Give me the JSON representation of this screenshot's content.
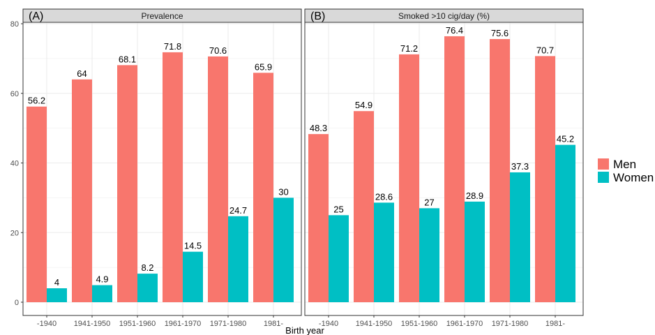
{
  "chart_data": {
    "type": "bar",
    "xlabel": "Birth year",
    "ylabel": "",
    "ylim": [
      0,
      80
    ],
    "yticks": [
      0,
      20,
      40,
      60,
      80
    ],
    "categories": [
      "-1940",
      "1941-1950",
      "1951-1960",
      "1961-1970",
      "1971-1980",
      "1981-"
    ],
    "grid": true,
    "legend": {
      "placement": "right",
      "entries": [
        {
          "name": "Men",
          "color": "#F8766D"
        },
        {
          "name": "Women",
          "color": "#00BFC4"
        }
      ]
    },
    "panels": [
      {
        "tag": "(A)",
        "strip": "Prevalence",
        "series": [
          {
            "name": "Men",
            "values": [
              56.2,
              64,
              68.1,
              71.8,
              70.6,
              65.9
            ],
            "labels": [
              "56.2",
              "64",
              "68.1",
              "71.8",
              "70.6",
              "65.9"
            ]
          },
          {
            "name": "Women",
            "values": [
              4,
              4.9,
              8.2,
              14.5,
              24.7,
              30
            ],
            "labels": [
              "4",
              "4.9",
              "8.2",
              "14.5",
              "24.7",
              "30"
            ]
          }
        ]
      },
      {
        "tag": "(B)",
        "strip": "Smoked >10 cig/day (%)",
        "series": [
          {
            "name": "Men",
            "values": [
              48.3,
              54.9,
              71.2,
              76.4,
              75.6,
              70.7
            ],
            "labels": [
              "48.3",
              "54.9",
              "71.2",
              "76.4",
              "75.6",
              "70.7"
            ]
          },
          {
            "name": "Women",
            "values": [
              25,
              28.6,
              27,
              28.9,
              37.3,
              45.2
            ],
            "labels": [
              "25",
              "28.6",
              "27",
              "28.9",
              "37.3",
              "45.2"
            ]
          }
        ]
      }
    ]
  }
}
